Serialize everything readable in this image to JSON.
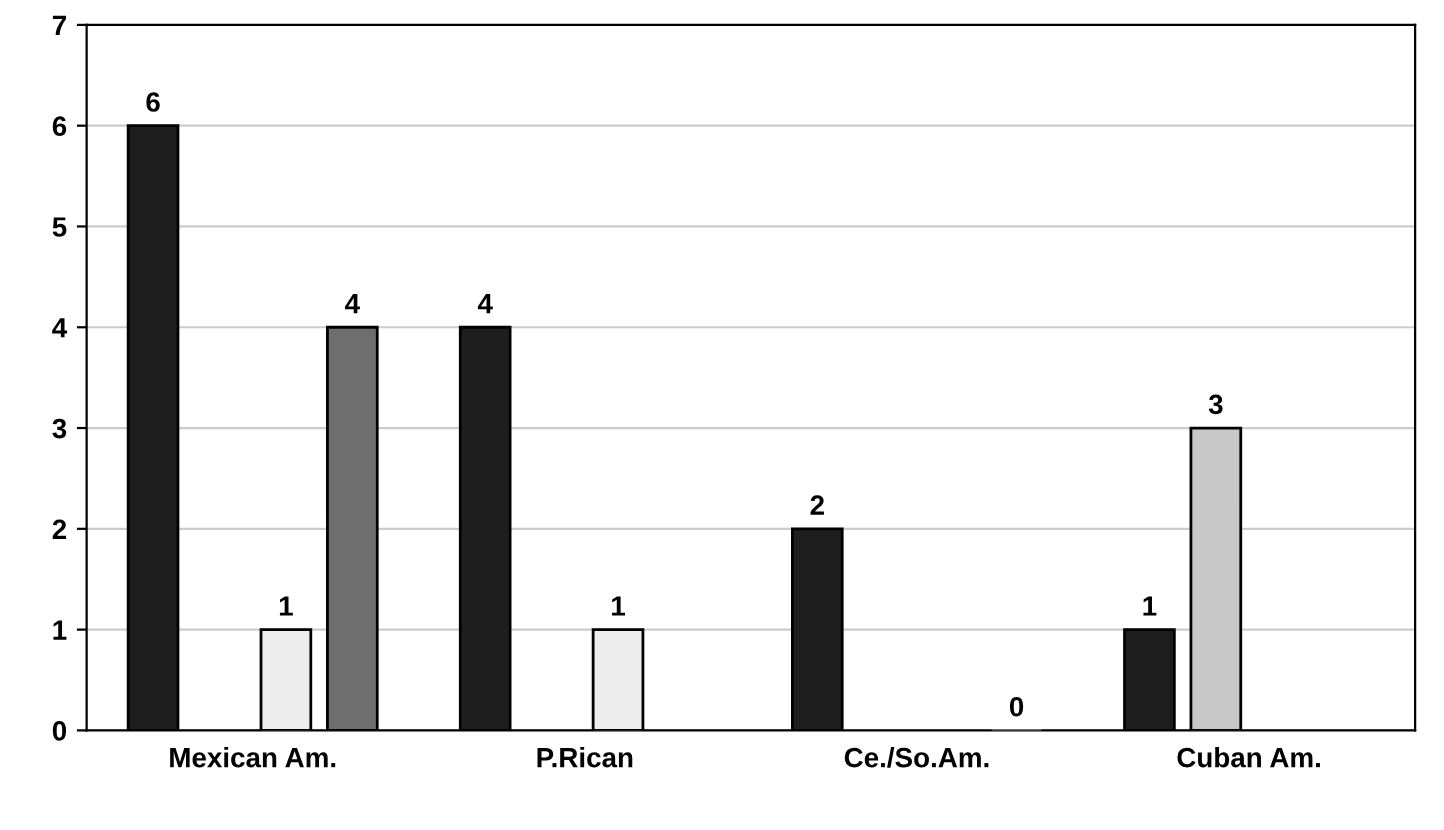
{
  "chart_data": {
    "type": "bar",
    "categories": [
      "Mexican Am.",
      "P.Rican",
      "Ce./So.Am.",
      "Cuban Am."
    ],
    "series": [
      {
        "color": "#1e1e1e",
        "values": [
          6,
          4,
          2,
          1
        ]
      },
      {
        "color": "#c8c8c8",
        "values": [
          null,
          null,
          null,
          3
        ]
      },
      {
        "color": "#ececec",
        "values": [
          1,
          1,
          null,
          null
        ]
      },
      {
        "color": "#6e6e6e",
        "values": [
          4,
          null,
          0,
          null
        ]
      }
    ],
    "ylim": [
      0,
      7
    ],
    "yticks": [
      0,
      1,
      2,
      3,
      4,
      5,
      6,
      7
    ],
    "grid": "y",
    "data_labels": true,
    "legend": false
  }
}
